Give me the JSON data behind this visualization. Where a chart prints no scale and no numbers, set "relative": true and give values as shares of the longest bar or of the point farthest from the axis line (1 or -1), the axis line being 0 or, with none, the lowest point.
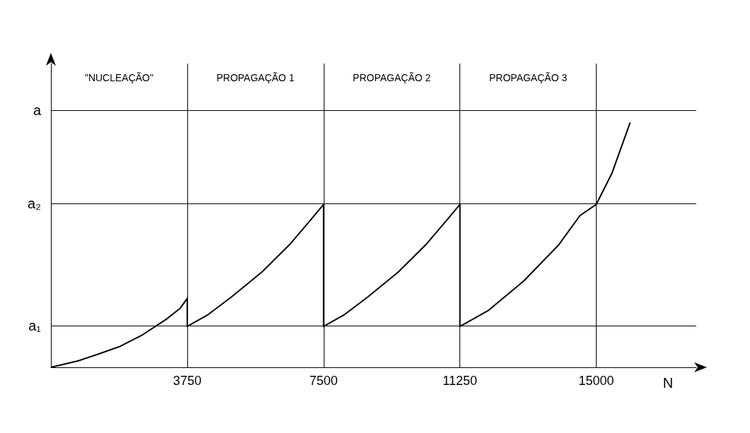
{
  "chart_data": {
    "type": "line",
    "relative": true,
    "xlabel": "N",
    "xlim": [
      0,
      17750
    ],
    "xticks": [
      3750,
      7500,
      11250,
      15000
    ],
    "grid": "x",
    "marker": "none",
    "line_style": "solid",
    "series": [
      {
        "color": "#000000",
        "x": [
          0,
          740,
          1320,
          1910,
          2490,
          3170,
          3560,
          3750,
          3750,
          4300,
          4970,
          5800,
          6580,
          7160,
          7500,
          7500,
          8050,
          8720,
          9550,
          10330,
          10910,
          11250,
          11250,
          12020,
          13000,
          13970,
          14550,
          15000,
          15430,
          15930
        ],
        "values": [
          0,
          0.026,
          0.055,
          0.086,
          0.13,
          0.196,
          0.242,
          0.282,
          0.167,
          0.213,
          0.288,
          0.389,
          0.504,
          0.605,
          0.666,
          0.167,
          0.213,
          0.288,
          0.389,
          0.504,
          0.605,
          0.666,
          0.167,
          0.231,
          0.352,
          0.501,
          0.62,
          0.666,
          0.793,
          1
        ]
      }
    ],
    "ref_lines": [
      {
        "axis": "y",
        "value": 0.167,
        "label": "a₁",
        "color": "#000000"
      },
      {
        "axis": "y",
        "value": 0.666,
        "label": "a₂",
        "color": "#000000"
      },
      {
        "axis": "y",
        "value": 1.052,
        "label": "a",
        "color": "#000000"
      }
    ],
    "annotations": [
      "\"NUCLEAÇÃO\"",
      "PROPAGAÇÃO 1",
      "PROPAGAÇÃO 2",
      "PROPAGAÇÃO 3"
    ]
  }
}
